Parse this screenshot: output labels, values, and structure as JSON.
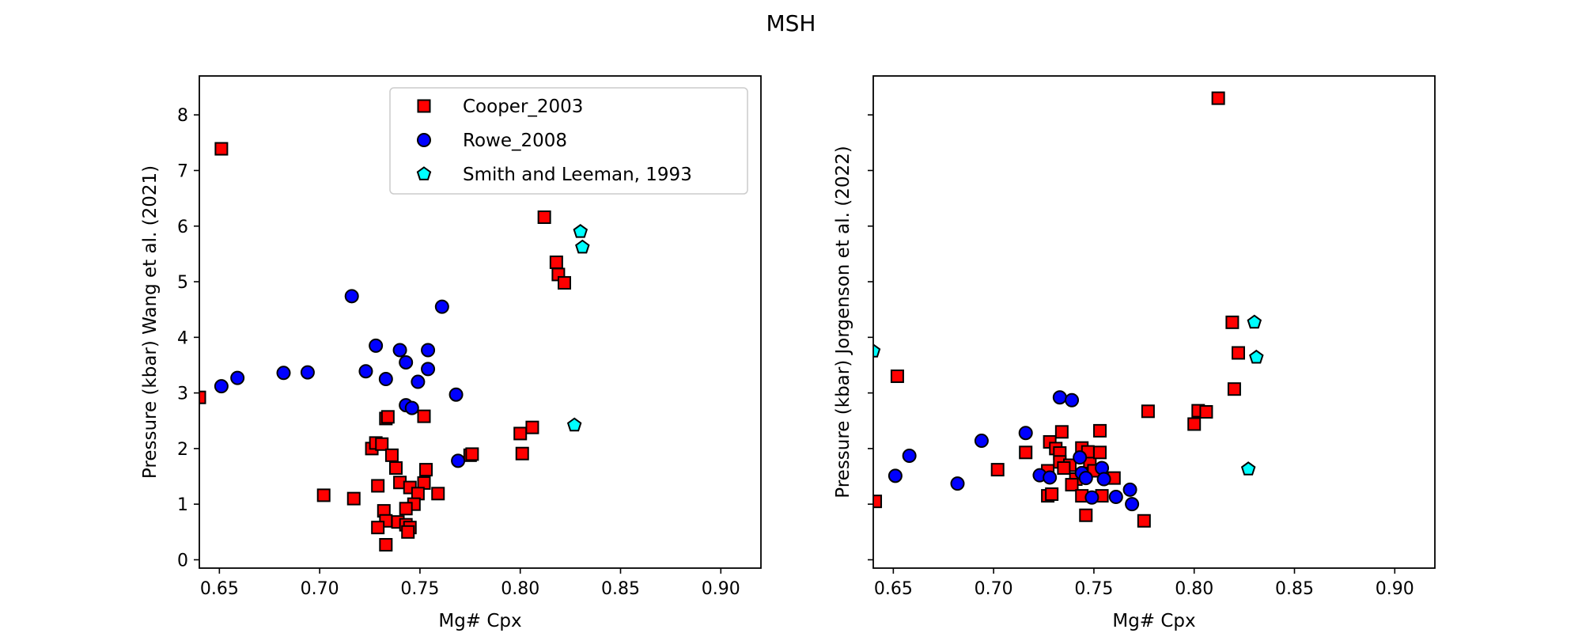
{
  "suptitle": "MSH",
  "legend": {
    "location": "upper right (left panel)",
    "entries": [
      {
        "label": "Cooper_2003",
        "marker": "square",
        "color": "#ff0000"
      },
      {
        "label": "Rowe_2008",
        "marker": "circle",
        "color": "#0000ff"
      },
      {
        "label": "Smith and Leeman, 1993",
        "marker": "pentagon",
        "color": "#00ffff"
      }
    ]
  },
  "chart_data": [
    {
      "type": "scatter",
      "xlabel": "Mg# Cpx",
      "ylabel": "Pressure (kbar) Wang et al. (2021)",
      "xlim": [
        0.64,
        0.92
      ],
      "ylim": [
        -0.15,
        8.7
      ],
      "xticks": [
        "0.65",
        "0.70",
        "0.75",
        "0.80",
        "0.85",
        "0.90"
      ],
      "yticks": [
        "0",
        "1",
        "2",
        "3",
        "4",
        "5",
        "6",
        "7",
        "8"
      ],
      "show_tick_labels_y": true,
      "series": [
        {
          "name": "Cooper_2003",
          "marker": "square",
          "color": "#ff0000",
          "points": [
            [
              0.651,
              7.39
            ],
            [
              0.64,
              2.92
            ],
            [
              0.812,
              6.16
            ],
            [
              0.818,
              5.35
            ],
            [
              0.819,
              5.13
            ],
            [
              0.822,
              4.98
            ],
            [
              0.733,
              2.54
            ],
            [
              0.734,
              2.57
            ],
            [
              0.752,
              2.58
            ],
            [
              0.726,
              2.0
            ],
            [
              0.728,
              2.1
            ],
            [
              0.731,
              2.08
            ],
            [
              0.736,
              1.88
            ],
            [
              0.738,
              1.65
            ],
            [
              0.74,
              1.39
            ],
            [
              0.753,
              1.62
            ],
            [
              0.752,
              1.38
            ],
            [
              0.745,
              1.3
            ],
            [
              0.749,
              1.19
            ],
            [
              0.747,
              1.0
            ],
            [
              0.743,
              0.92
            ],
            [
              0.759,
              1.19
            ],
            [
              0.775,
              1.88
            ],
            [
              0.776,
              1.9
            ],
            [
              0.8,
              2.27
            ],
            [
              0.806,
              2.38
            ],
            [
              0.801,
              1.91
            ],
            [
              0.702,
              1.16
            ],
            [
              0.717,
              1.1
            ],
            [
              0.729,
              1.33
            ],
            [
              0.732,
              0.88
            ],
            [
              0.733,
              0.7
            ],
            [
              0.729,
              0.58
            ],
            [
              0.739,
              0.68
            ],
            [
              0.743,
              0.63
            ],
            [
              0.745,
              0.58
            ],
            [
              0.744,
              0.5
            ],
            [
              0.733,
              0.27
            ]
          ]
        },
        {
          "name": "Rowe_2008",
          "marker": "circle",
          "color": "#0000ff",
          "points": [
            [
              0.651,
              3.12
            ],
            [
              0.659,
              3.27
            ],
            [
              0.682,
              3.36
            ],
            [
              0.694,
              3.37
            ],
            [
              0.716,
              4.74
            ],
            [
              0.761,
              4.55
            ],
            [
              0.728,
              3.85
            ],
            [
              0.74,
              3.77
            ],
            [
              0.754,
              3.77
            ],
            [
              0.743,
              3.55
            ],
            [
              0.754,
              3.43
            ],
            [
              0.723,
              3.39
            ],
            [
              0.733,
              3.25
            ],
            [
              0.749,
              3.2
            ],
            [
              0.768,
              2.97
            ],
            [
              0.743,
              2.78
            ],
            [
              0.746,
              2.73
            ],
            [
              0.769,
              1.78
            ]
          ]
        },
        {
          "name": "Smith and Leeman, 1993",
          "marker": "pentagon",
          "color": "#00ffff",
          "points": [
            [
              0.83,
              5.9
            ],
            [
              0.831,
              5.62
            ],
            [
              0.827,
              2.42
            ]
          ]
        }
      ]
    },
    {
      "type": "scatter",
      "xlabel": "Mg# Cpx",
      "ylabel": "Pressure (kbar) Jorgenson et al. (2022)",
      "xlim": [
        0.64,
        0.92
      ],
      "ylim": [
        -0.15,
        8.7
      ],
      "xticks": [
        "0.65",
        "0.70",
        "0.75",
        "0.80",
        "0.85",
        "0.90"
      ],
      "yticks": [
        "0",
        "1",
        "2",
        "3",
        "4",
        "5",
        "6",
        "7",
        "8"
      ],
      "show_tick_labels_y": false,
      "series": [
        {
          "name": "Cooper_2003",
          "marker": "square",
          "color": "#ff0000",
          "points": [
            [
              0.812,
              8.3
            ],
            [
              0.819,
              4.27
            ],
            [
              0.822,
              3.72
            ],
            [
              0.82,
              3.07
            ],
            [
              0.802,
              2.68
            ],
            [
              0.806,
              2.66
            ],
            [
              0.8,
              2.44
            ],
            [
              0.777,
              2.67
            ],
            [
              0.652,
              3.3
            ],
            [
              0.641,
              1.05
            ],
            [
              0.702,
              1.62
            ],
            [
              0.716,
              1.93
            ],
            [
              0.728,
              2.12
            ],
            [
              0.731,
              2.0
            ],
            [
              0.733,
              1.92
            ],
            [
              0.734,
              2.3
            ],
            [
              0.733,
              1.76
            ],
            [
              0.738,
              1.7
            ],
            [
              0.744,
              2.01
            ],
            [
              0.747,
              1.94
            ],
            [
              0.748,
              1.73
            ],
            [
              0.753,
              2.32
            ],
            [
              0.753,
              1.93
            ],
            [
              0.727,
              1.6
            ],
            [
              0.741,
              1.45
            ],
            [
              0.739,
              1.35
            ],
            [
              0.746,
              1.55
            ],
            [
              0.76,
              1.47
            ],
            [
              0.727,
              1.15
            ],
            [
              0.729,
              1.18
            ],
            [
              0.744,
              1.15
            ],
            [
              0.754,
              1.15
            ],
            [
              0.746,
              0.8
            ],
            [
              0.775,
              0.7
            ],
            [
              0.735,
              1.65
            ],
            [
              0.75,
              1.6
            ]
          ]
        },
        {
          "name": "Rowe_2008",
          "marker": "circle",
          "color": "#0000ff",
          "points": [
            [
              0.733,
              2.92
            ],
            [
              0.739,
              2.87
            ],
            [
              0.716,
              2.28
            ],
            [
              0.694,
              2.14
            ],
            [
              0.658,
              1.87
            ],
            [
              0.651,
              1.51
            ],
            [
              0.682,
              1.37
            ],
            [
              0.723,
              1.52
            ],
            [
              0.728,
              1.48
            ],
            [
              0.743,
              1.84
            ],
            [
              0.744,
              1.56
            ],
            [
              0.746,
              1.47
            ],
            [
              0.754,
              1.65
            ],
            [
              0.755,
              1.45
            ],
            [
              0.768,
              1.26
            ],
            [
              0.761,
              1.13
            ],
            [
              0.749,
              1.12
            ],
            [
              0.769,
              1.0
            ]
          ]
        },
        {
          "name": "Smith and Leeman, 1993",
          "marker": "pentagon",
          "color": "#00ffff",
          "points": [
            [
              0.64,
              3.75
            ],
            [
              0.83,
              4.27
            ],
            [
              0.831,
              3.64
            ],
            [
              0.827,
              1.63
            ]
          ]
        }
      ]
    }
  ]
}
